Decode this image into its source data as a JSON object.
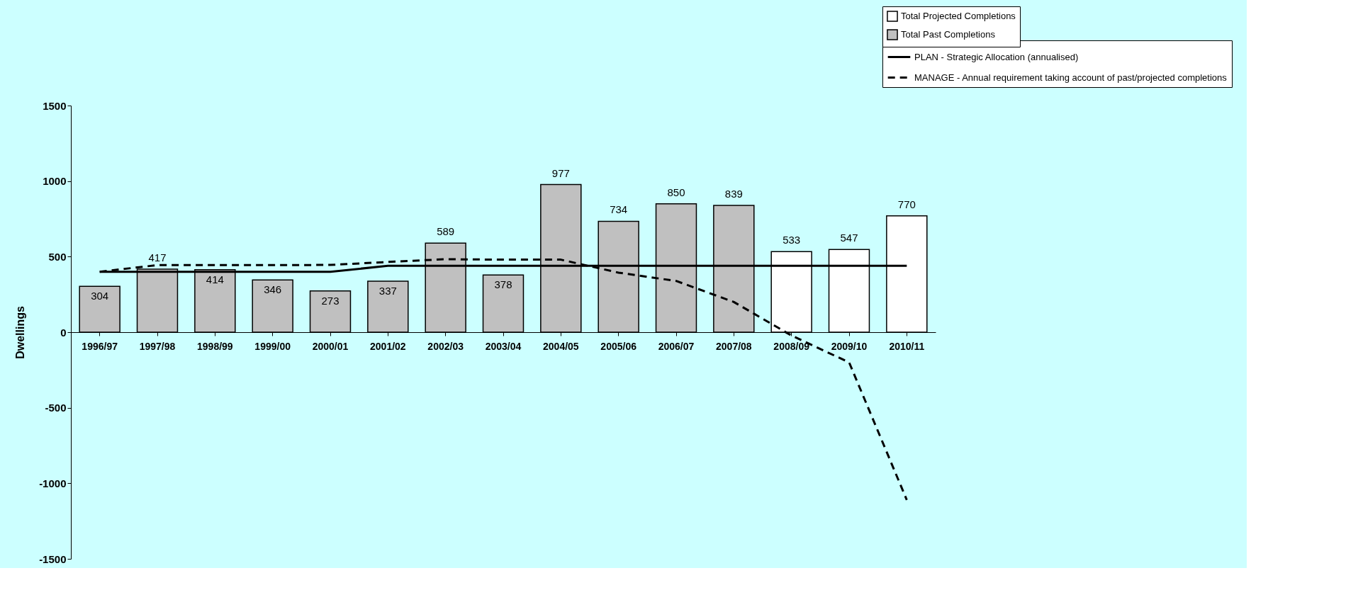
{
  "chart_data": {
    "type": "bar",
    "ylabel": "Dwellings",
    "categories": [
      "1996/97",
      "1997/98",
      "1998/99",
      "1999/00",
      "2000/01",
      "2001/02",
      "2002/03",
      "2003/04",
      "2004/05",
      "2005/06",
      "2006/07",
      "2007/08",
      "2008/09",
      "2009/10",
      "2010/11"
    ],
    "series": [
      {
        "name": "Total Projected Completions",
        "color": "#ffffff",
        "values": [
          null,
          null,
          null,
          null,
          null,
          null,
          null,
          null,
          null,
          null,
          null,
          null,
          533,
          547,
          770
        ],
        "value_labels": [
          null,
          null,
          null,
          null,
          null,
          null,
          null,
          null,
          null,
          null,
          null,
          null,
          "533",
          "547",
          "770"
        ]
      },
      {
        "name": "Total Past Completions",
        "color": "#c0c0c0",
        "values": [
          304,
          417,
          414,
          346,
          273,
          337,
          589,
          378,
          977,
          734,
          850,
          839,
          null,
          null,
          null
        ],
        "value_labels": [
          "304",
          "417",
          "414",
          "346",
          "273",
          "337",
          "589",
          "378",
          "977",
          "734",
          "850",
          "839",
          null,
          null,
          null
        ]
      },
      {
        "name": "PLAN - Strategic Allocation (annualised)",
        "type": "line",
        "color": "#000000",
        "line_style": "solid",
        "values": [
          400,
          400,
          400,
          400,
          400,
          439,
          439,
          439,
          439,
          439,
          439,
          439,
          439,
          439,
          439
        ]
      },
      {
        "name": "MANAGE - Annual requirement taking account of past/projected completions",
        "type": "line",
        "color": "#000000",
        "line_style": "dashed",
        "values": [
          400,
          444,
          444,
          444,
          445,
          465,
          483,
          480,
          480,
          394,
          339,
          200,
          -22,
          -200,
          -1110
        ]
      }
    ],
    "ylim": [
      -1500,
      1500
    ],
    "yticks": [
      -1500,
      -1000,
      -500,
      0,
      500,
      1000,
      1500
    ],
    "grid": false,
    "legend": "top right",
    "marker": "none"
  }
}
